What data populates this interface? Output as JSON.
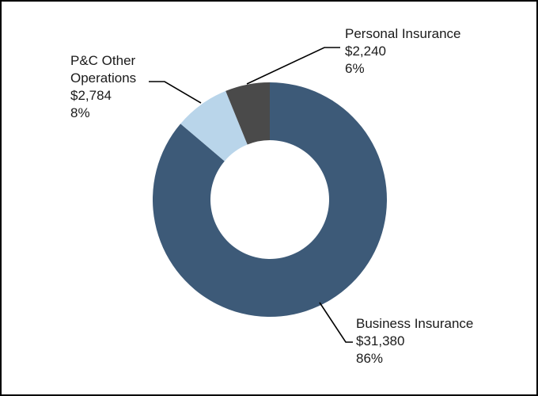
{
  "chart_data": {
    "type": "pie",
    "variant": "donut",
    "categories": [
      "Business Insurance",
      "P&C Other Operations",
      "Personal Insurance"
    ],
    "values": [
      31380,
      2784,
      2240
    ],
    "value_labels": [
      "$2,240",
      "$31,380",
      "$2,784"
    ],
    "percent_labels": [
      "6%",
      "86%",
      "8%"
    ],
    "colors": [
      "#3d5a78",
      "#b9d5ea",
      "#4a4a4a"
    ],
    "labels": [
      {
        "lines": [
          "Personal Insurance",
          "$2,240",
          "6%"
        ]
      },
      {
        "lines": [
          "Business Insurance",
          "$31,380",
          "86%"
        ]
      },
      {
        "lines": [
          "P&C Other",
          "Operations",
          "$2,784",
          "8%"
        ]
      }
    ],
    "legend": "none"
  }
}
